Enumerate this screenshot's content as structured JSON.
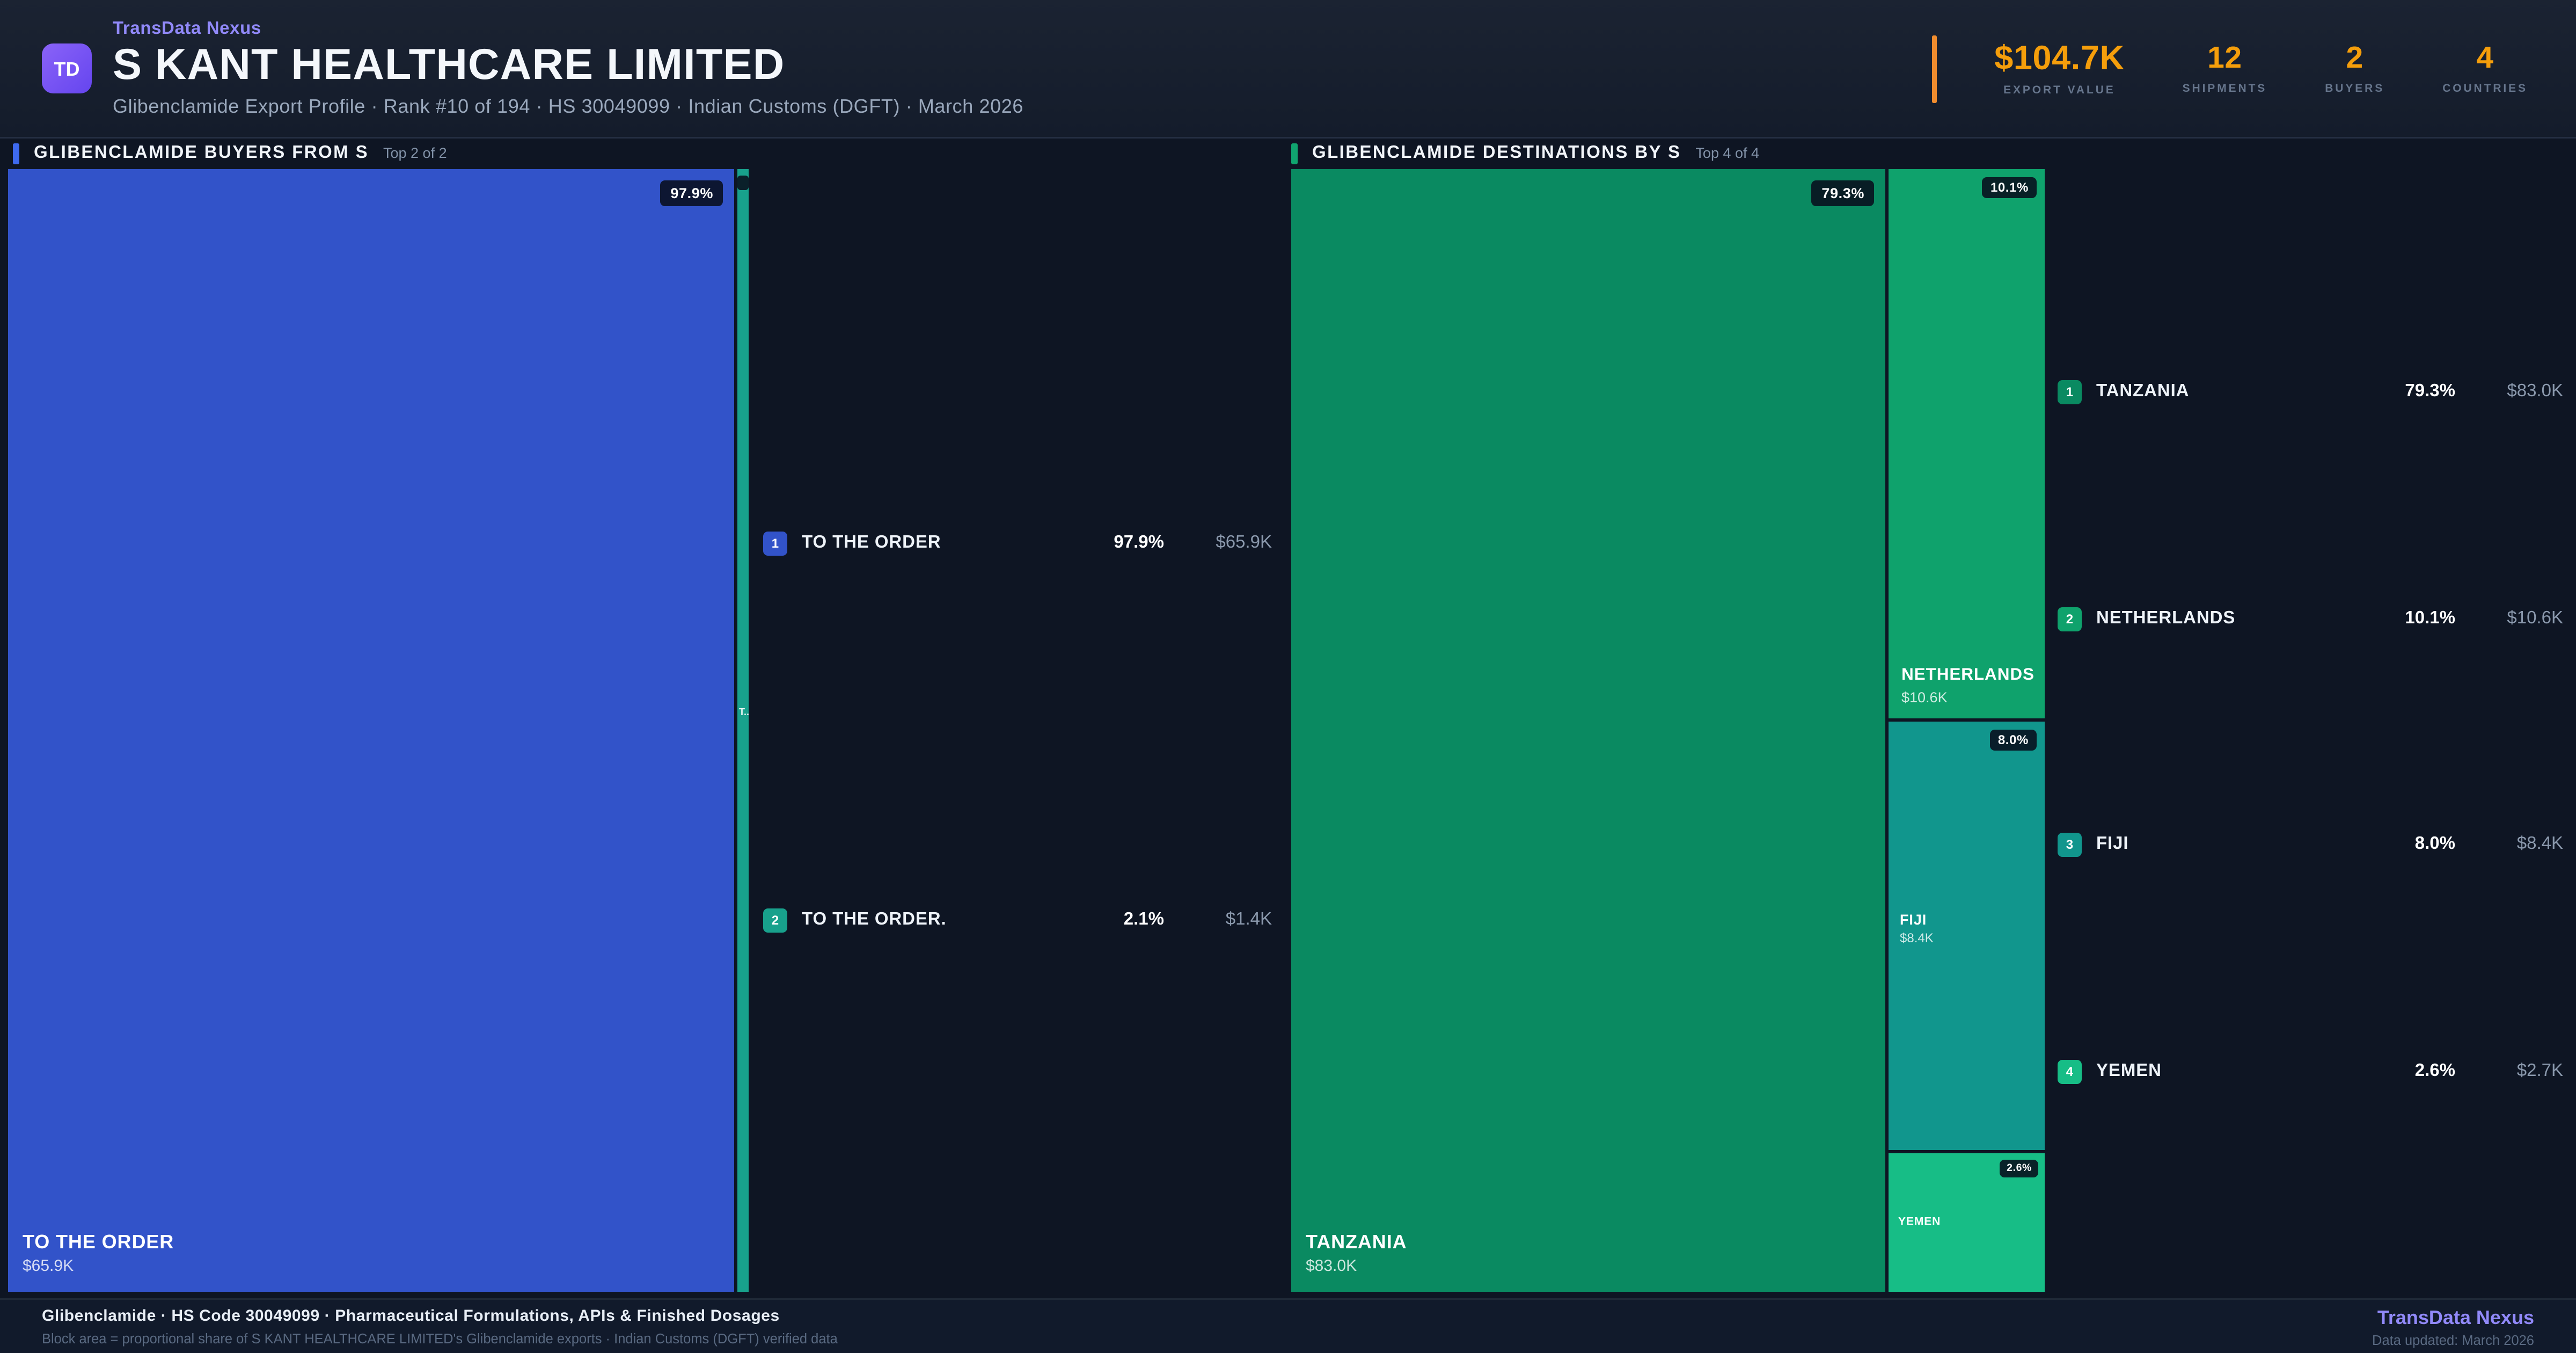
{
  "header": {
    "logo_text": "TD",
    "brand": "TransData Nexus",
    "title": "S KANT HEALTHCARE LIMITED",
    "subtitle": "Glibenclamide Export Profile · Rank #10 of 194 · HS 30049099 · Indian Customs (DGFT) · March 2026",
    "accent_color": "#f08c2e",
    "stats": [
      {
        "value": "$104.7K",
        "label": "EXPORT VALUE"
      },
      {
        "value": "12",
        "label": "SHIPMENTS"
      },
      {
        "value": "2",
        "label": "BUYERS"
      },
      {
        "value": "4",
        "label": "COUNTRIES"
      }
    ]
  },
  "panels": {
    "buyers": {
      "title": "GLIBENCLAMIDE BUYERS FROM S",
      "subtitle": "Top 2 of 2",
      "accent_color": "#3e6af0"
    },
    "destinations": {
      "title": "GLIBENCLAMIDE DESTINATIONS BY S",
      "subtitle": "Top 4 of 4",
      "accent_color": "#10a56f"
    }
  },
  "chart_data": [
    {
      "type": "treemap",
      "title": "GLIBENCLAMIDE BUYERS FROM S",
      "subtitle": "Top 2 of 2",
      "items": [
        {
          "rank": "1",
          "label": "TO THE ORDER",
          "share_pct": 97.9,
          "pct_label": "97.9%",
          "value": "$65.9K",
          "color": "#3253c9"
        },
        {
          "rank": "2",
          "label": "TO THE ORDER.",
          "share_pct": 2.1,
          "pct_label": "2.1%",
          "value": "$1.4K",
          "color": "#18a18c",
          "truncated_label": "T.."
        }
      ]
    },
    {
      "type": "treemap",
      "title": "GLIBENCLAMIDE DESTINATIONS BY S",
      "subtitle": "Top 4 of 4",
      "items": [
        {
          "rank": "1",
          "label": "TANZANIA",
          "share_pct": 79.3,
          "pct_label": "79.3%",
          "value": "$83.0K",
          "color": "#0a8a61"
        },
        {
          "rank": "2",
          "label": "NETHERLANDS",
          "share_pct": 10.1,
          "pct_label": "10.1%",
          "value": "$10.6K",
          "color": "#0fa26c"
        },
        {
          "rank": "3",
          "label": "FIJI",
          "share_pct": 8.0,
          "pct_label": "8.0%",
          "value": "$8.4K",
          "color": "#11968d"
        },
        {
          "rank": "4",
          "label": "YEMEN",
          "share_pct": 2.6,
          "pct_label": "2.6%",
          "value": "$2.7K",
          "color": "#17bd86"
        }
      ]
    }
  ],
  "footer": {
    "line1": "Glibenclamide · HS Code 30049099 · Pharmaceutical Formulations, APIs & Finished Dosages",
    "line2": "Block area = proportional share of S KANT HEALTHCARE LIMITED's Glibenclamide exports · Indian Customs (DGFT) verified data",
    "brand": "TransData Nexus",
    "updated": "Data updated: March 2026"
  }
}
